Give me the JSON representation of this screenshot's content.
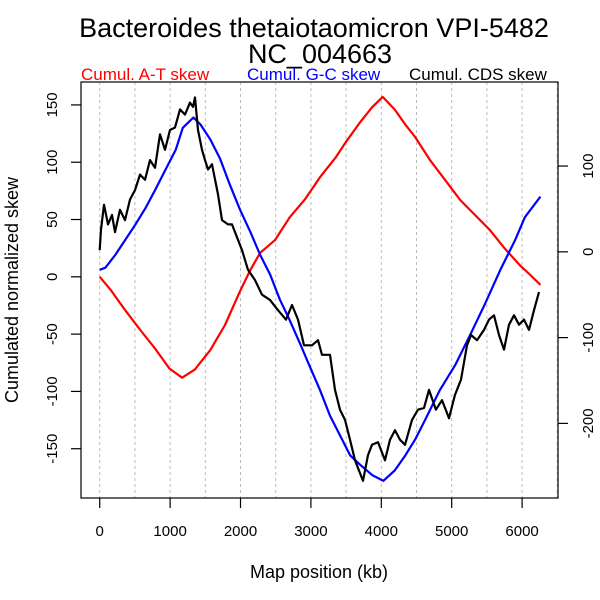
{
  "chart_data": {
    "type": "line",
    "title": "Bacteroides thetaiotaomicron VPI-5482",
    "subtitle": "NC_004663",
    "xlabel": "Map position (kb)",
    "ylabel": "Cumulated normalized skew",
    "xlim": [
      -266,
      6510
    ],
    "ylim_left": [
      -193,
      170
    ],
    "ylim_right": [
      -287,
      198
    ],
    "x_ticks": [
      0,
      1000,
      2000,
      3000,
      4000,
      5000,
      6000
    ],
    "x_tick_labels": [
      "0",
      "1000",
      "2000",
      "3000",
      "4000",
      "5000",
      "6000"
    ],
    "x_grid": [
      0,
      500,
      1000,
      1500,
      2000,
      2500,
      3000,
      3500,
      4000,
      4500,
      5000,
      5500,
      6000,
      6500
    ],
    "y_ticks_left": [
      -150,
      -100,
      -50,
      0,
      50,
      100,
      150
    ],
    "y_tick_labels_left": [
      "-150",
      "-100",
      "-50",
      "0",
      "50",
      "100",
      "150"
    ],
    "y_ticks_right": [
      -200,
      -100,
      0,
      100
    ],
    "y_tick_labels_right": [
      "-200",
      "-100",
      "0",
      "100"
    ],
    "grid": "vertical dashed",
    "legend_placement": "top",
    "series": [
      {
        "name": "Cumul. A-T skew",
        "color": "#ff0000",
        "axis": "left",
        "x": [
          0,
          150,
          360,
          570,
          780,
          990,
          1170,
          1350,
          1570,
          1780,
          1990,
          2140,
          2280,
          2490,
          2700,
          2920,
          3130,
          3350,
          3490,
          3700,
          3870,
          4020,
          4190,
          4340,
          4480,
          4690,
          4900,
          5120,
          5330,
          5540,
          5750,
          5970,
          6110,
          6260
        ],
        "y": [
          0,
          -11,
          -29,
          -46,
          -62,
          -80,
          -88,
          -81,
          -64,
          -42,
          -13,
          6,
          21,
          32,
          52,
          68,
          87,
          104,
          117,
          135,
          148,
          157,
          146,
          133,
          122,
          102,
          85,
          67,
          54,
          41,
          25,
          10,
          2,
          -7
        ]
      },
      {
        "name": "Cumul. G-C skew",
        "color": "#0000ff",
        "axis": "left",
        "x": [
          0,
          80,
          220,
          360,
          500,
          650,
          790,
          930,
          1080,
          1180,
          1330,
          1430,
          1570,
          1710,
          1850,
          1990,
          2140,
          2280,
          2420,
          2560,
          2700,
          2850,
          2990,
          3130,
          3270,
          3410,
          3560,
          3700,
          3870,
          4030,
          4190,
          4340,
          4480,
          4620,
          4830,
          5050,
          5260,
          5470,
          5690,
          5900,
          6040,
          6260
        ],
        "y": [
          6,
          8,
          19,
          32,
          45,
          60,
          76,
          93,
          111,
          130,
          139,
          133,
          120,
          103,
          80,
          59,
          39,
          19,
          2,
          -20,
          -38,
          -59,
          -79,
          -99,
          -121,
          -138,
          -156,
          -164,
          -173,
          -178,
          -169,
          -156,
          -142,
          -125,
          -99,
          -77,
          -51,
          -24,
          6,
          32,
          52,
          70
        ]
      },
      {
        "name": "Cumul. CDS skew",
        "color": "#000000",
        "axis": "right",
        "x": [
          0,
          18,
          61,
          118,
          175,
          217,
          288,
          359,
          430,
          501,
          572,
          643,
          714,
          785,
          856,
          927,
          998,
          1069,
          1140,
          1211,
          1282,
          1325,
          1353,
          1396,
          1453,
          1496,
          1538,
          1595,
          1680,
          1737,
          1822,
          1879,
          1964,
          2021,
          2106,
          2206,
          2305,
          2419,
          2533,
          2646,
          2731,
          2817,
          2902,
          3016,
          3101,
          3157,
          3271,
          3342,
          3413,
          3484,
          3555,
          3626,
          3740,
          3811,
          3868,
          3953,
          4053,
          4124,
          4195,
          4266,
          4337,
          4436,
          4521,
          4606,
          4677,
          4776,
          4862,
          4961,
          5046,
          5132,
          5217,
          5274,
          5359,
          5459,
          5530,
          5601,
          5672,
          5743,
          5814,
          5885,
          5956,
          6027,
          6098,
          6169,
          6240
        ],
        "y": [
          2,
          26,
          55,
          32,
          43,
          23,
          49,
          37,
          61,
          72,
          90,
          84,
          107,
          98,
          137,
          119,
          142,
          145,
          166,
          160,
          174,
          169,
          180,
          142,
          119,
          107,
          96,
          102,
          67,
          37,
          32,
          32,
          14,
          2,
          -21,
          -33,
          -50,
          -56,
          -68,
          -79,
          -62,
          -79,
          -109,
          -109,
          -103,
          -120,
          -120,
          -161,
          -184,
          -196,
          -219,
          -243,
          -267,
          -237,
          -225,
          -222,
          -243,
          -219,
          -208,
          -219,
          -225,
          -196,
          -184,
          -182,
          -161,
          -184,
          -173,
          -194,
          -167,
          -149,
          -109,
          -97,
          -103,
          -91,
          -79,
          -74,
          -97,
          -114,
          -85,
          -74,
          -85,
          -79,
          -91,
          -68,
          -47
        ]
      }
    ]
  }
}
